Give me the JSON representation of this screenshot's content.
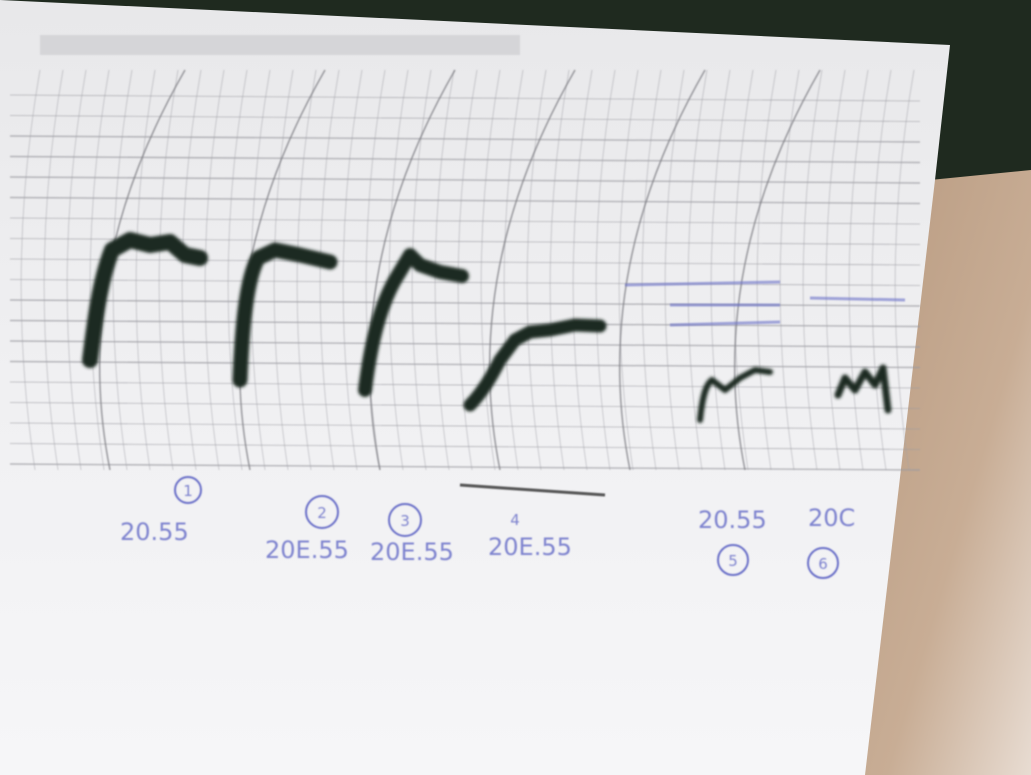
{
  "labels": [
    {
      "number": "1",
      "value": "20.55"
    },
    {
      "number": "2",
      "value": "20E.55"
    },
    {
      "number": "3",
      "value": "20E.55"
    },
    {
      "number": "4",
      "value": "20E.55"
    },
    {
      "number": "5",
      "value": "20.55"
    },
    {
      "number": "6",
      "value": "20C"
    }
  ]
}
